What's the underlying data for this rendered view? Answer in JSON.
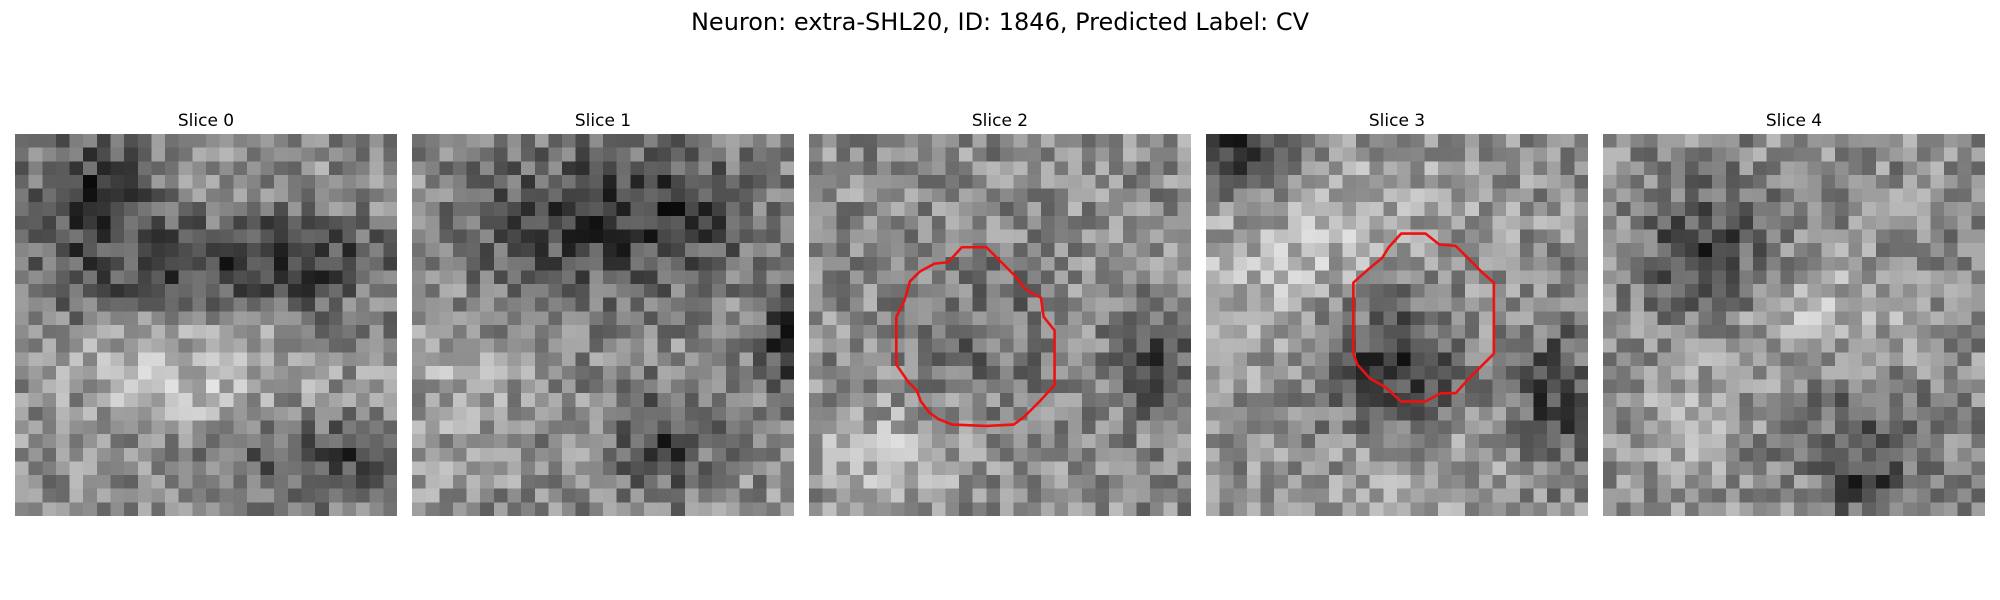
{
  "figure": {
    "title": "Neuron: extra-SHL20, ID: 1846, Predicted Label: CV"
  },
  "slices": [
    {
      "title": "Slice 0",
      "seed": 11,
      "contour": false
    },
    {
      "title": "Slice 1",
      "seed": 23,
      "contour": false
    },
    {
      "title": "Slice 2",
      "seed": 37,
      "contour": true
    },
    {
      "title": "Slice 3",
      "seed": 53,
      "contour": true
    },
    {
      "title": "Slice 4",
      "seed": 71,
      "contour": false
    }
  ],
  "colors": {
    "contour": "#ee1111"
  }
}
